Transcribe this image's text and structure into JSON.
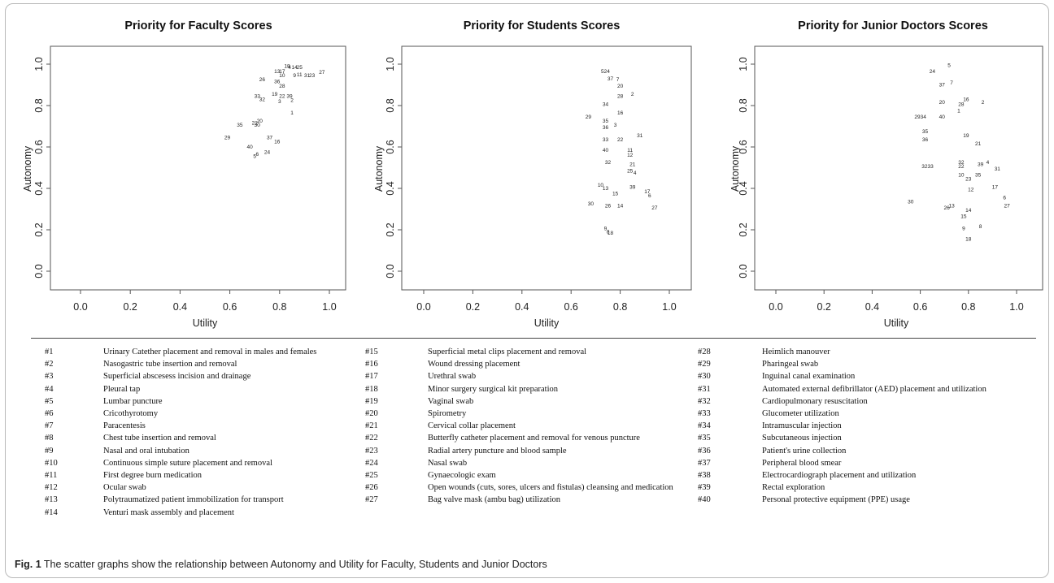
{
  "chart_data": [
    {
      "type": "scatter",
      "title": "Priority for Faculty Scores",
      "xlabel": "Utility",
      "ylabel": "Autonomy",
      "xlim": [
        0.0,
        1.0
      ],
      "ylim": [
        0.0,
        1.0
      ],
      "xticks": [
        "0.0",
        "0.2",
        "0.4",
        "0.6",
        "0.8",
        "1.0"
      ],
      "yticks": [
        "0.0",
        "0.2",
        "0.4",
        "0.6",
        "0.8",
        "1.0"
      ],
      "grid": false,
      "points": [
        {
          "label": "18",
          "x": 0.83,
          "y": 0.99
        },
        {
          "label": "4",
          "x": 0.84,
          "y": 0.985
        },
        {
          "label": "14",
          "x": 0.86,
          "y": 0.985
        },
        {
          "label": "25",
          "x": 0.88,
          "y": 0.985
        },
        {
          "label": "13",
          "x": 0.79,
          "y": 0.965
        },
        {
          "label": "17",
          "x": 0.81,
          "y": 0.965
        },
        {
          "label": "10",
          "x": 0.81,
          "y": 0.945
        },
        {
          "label": "9",
          "x": 0.86,
          "y": 0.945
        },
        {
          "label": "11",
          "x": 0.88,
          "y": 0.95
        },
        {
          "label": "31",
          "x": 0.91,
          "y": 0.945
        },
        {
          "label": "23",
          "x": 0.93,
          "y": 0.945
        },
        {
          "label": "27",
          "x": 0.97,
          "y": 0.96
        },
        {
          "label": "26",
          "x": 0.73,
          "y": 0.925
        },
        {
          "label": "36",
          "x": 0.79,
          "y": 0.915
        },
        {
          "label": "28",
          "x": 0.81,
          "y": 0.895
        },
        {
          "label": "19",
          "x": 0.78,
          "y": 0.855
        },
        {
          "label": "22",
          "x": 0.81,
          "y": 0.845
        },
        {
          "label": "39",
          "x": 0.84,
          "y": 0.845
        },
        {
          "label": "33",
          "x": 0.71,
          "y": 0.845
        },
        {
          "label": "32",
          "x": 0.73,
          "y": 0.83
        },
        {
          "label": "3",
          "x": 0.8,
          "y": 0.82
        },
        {
          "label": "2",
          "x": 0.85,
          "y": 0.825
        },
        {
          "label": "1",
          "x": 0.85,
          "y": 0.765
        },
        {
          "label": "20",
          "x": 0.72,
          "y": 0.725
        },
        {
          "label": "21",
          "x": 0.7,
          "y": 0.715
        },
        {
          "label": "35",
          "x": 0.64,
          "y": 0.705
        },
        {
          "label": "30",
          "x": 0.71,
          "y": 0.705
        },
        {
          "label": "29",
          "x": 0.59,
          "y": 0.645
        },
        {
          "label": "37",
          "x": 0.76,
          "y": 0.645
        },
        {
          "label": "16",
          "x": 0.79,
          "y": 0.625
        },
        {
          "label": "40",
          "x": 0.68,
          "y": 0.6
        },
        {
          "label": "24",
          "x": 0.75,
          "y": 0.575
        },
        {
          "label": "6",
          "x": 0.71,
          "y": 0.565
        },
        {
          "label": "5",
          "x": 0.7,
          "y": 0.555
        }
      ]
    },
    {
      "type": "scatter",
      "title": "Priority for Students Scores",
      "xlabel": "Utility",
      "ylabel": "Autonomy",
      "xlim": [
        0.0,
        1.0
      ],
      "ylim": [
        0.0,
        1.0
      ],
      "xticks": [
        "0.0",
        "0.2",
        "0.4",
        "0.6",
        "0.8",
        "1.0"
      ],
      "yticks": [
        "0.0",
        "0.2",
        "0.4",
        "0.6",
        "0.8",
        "1.0"
      ],
      "grid": false,
      "points": [
        {
          "label": "524",
          "x": 0.74,
          "y": 0.965
        },
        {
          "label": "37",
          "x": 0.76,
          "y": 0.93
        },
        {
          "label": "7",
          "x": 0.79,
          "y": 0.925
        },
        {
          "label": "20",
          "x": 0.8,
          "y": 0.895
        },
        {
          "label": "2",
          "x": 0.85,
          "y": 0.855
        },
        {
          "label": "28",
          "x": 0.8,
          "y": 0.845
        },
        {
          "label": "34",
          "x": 0.74,
          "y": 0.805
        },
        {
          "label": "16",
          "x": 0.8,
          "y": 0.765
        },
        {
          "label": "29",
          "x": 0.67,
          "y": 0.745
        },
        {
          "label": "35",
          "x": 0.74,
          "y": 0.725
        },
        {
          "label": "3",
          "x": 0.78,
          "y": 0.705
        },
        {
          "label": "36",
          "x": 0.74,
          "y": 0.695
        },
        {
          "label": "31",
          "x": 0.88,
          "y": 0.655
        },
        {
          "label": "33",
          "x": 0.74,
          "y": 0.635
        },
        {
          "label": "22",
          "x": 0.8,
          "y": 0.635
        },
        {
          "label": "11",
          "x": 0.84,
          "y": 0.585
        },
        {
          "label": "40",
          "x": 0.74,
          "y": 0.585
        },
        {
          "label": "12",
          "x": 0.84,
          "y": 0.56
        },
        {
          "label": "32",
          "x": 0.75,
          "y": 0.525
        },
        {
          "label": "21",
          "x": 0.85,
          "y": 0.515
        },
        {
          "label": "25",
          "x": 0.84,
          "y": 0.485
        },
        {
          "label": "4",
          "x": 0.86,
          "y": 0.475
        },
        {
          "label": "10",
          "x": 0.72,
          "y": 0.415
        },
        {
          "label": "13",
          "x": 0.74,
          "y": 0.4
        },
        {
          "label": "39",
          "x": 0.85,
          "y": 0.405
        },
        {
          "label": "15",
          "x": 0.78,
          "y": 0.375
        },
        {
          "label": "17",
          "x": 0.91,
          "y": 0.385
        },
        {
          "label": "6",
          "x": 0.92,
          "y": 0.365
        },
        {
          "label": "30",
          "x": 0.68,
          "y": 0.325
        },
        {
          "label": "26",
          "x": 0.75,
          "y": 0.315
        },
        {
          "label": "14",
          "x": 0.8,
          "y": 0.315
        },
        {
          "label": "27",
          "x": 0.94,
          "y": 0.305
        },
        {
          "label": "9",
          "x": 0.74,
          "y": 0.205
        },
        {
          "label": "8",
          "x": 0.75,
          "y": 0.19
        },
        {
          "label": "18",
          "x": 0.76,
          "y": 0.185
        }
      ]
    },
    {
      "type": "scatter",
      "title": "Priority for Junior Doctors Scores",
      "xlabel": "Utility",
      "ylabel": "Autonomy",
      "xlim": [
        0.0,
        1.0
      ],
      "ylim": [
        0.0,
        1.0
      ],
      "xticks": [
        "0.0",
        "0.2",
        "0.4",
        "0.6",
        "0.8",
        "1.0"
      ],
      "yticks": [
        "0.0",
        "0.2",
        "0.4",
        "0.6",
        "0.8",
        "1.0"
      ],
      "grid": false,
      "points": [
        {
          "label": "5",
          "x": 0.72,
          "y": 0.995
        },
        {
          "label": "24",
          "x": 0.65,
          "y": 0.965
        },
        {
          "label": "7",
          "x": 0.73,
          "y": 0.91
        },
        {
          "label": "37",
          "x": 0.69,
          "y": 0.9
        },
        {
          "label": "16",
          "x": 0.79,
          "y": 0.83
        },
        {
          "label": "2",
          "x": 0.86,
          "y": 0.815
        },
        {
          "label": "20",
          "x": 0.69,
          "y": 0.815
        },
        {
          "label": "28",
          "x": 0.77,
          "y": 0.805
        },
        {
          "label": "1",
          "x": 0.76,
          "y": 0.775
        },
        {
          "label": "2934",
          "x": 0.6,
          "y": 0.745
        },
        {
          "label": "40",
          "x": 0.69,
          "y": 0.745
        },
        {
          "label": "35",
          "x": 0.62,
          "y": 0.675
        },
        {
          "label": "19",
          "x": 0.79,
          "y": 0.655
        },
        {
          "label": "36",
          "x": 0.62,
          "y": 0.635
        },
        {
          "label": "21",
          "x": 0.84,
          "y": 0.615
        },
        {
          "label": "32",
          "x": 0.77,
          "y": 0.525
        },
        {
          "label": "22",
          "x": 0.77,
          "y": 0.505
        },
        {
          "label": "39",
          "x": 0.85,
          "y": 0.515
        },
        {
          "label": "4",
          "x": 0.88,
          "y": 0.525
        },
        {
          "label": "3233",
          "x": 0.63,
          "y": 0.505
        },
        {
          "label": "31",
          "x": 0.92,
          "y": 0.495
        },
        {
          "label": "10",
          "x": 0.77,
          "y": 0.465
        },
        {
          "label": "35",
          "x": 0.84,
          "y": 0.465
        },
        {
          "label": "23",
          "x": 0.8,
          "y": 0.445
        },
        {
          "label": "12",
          "x": 0.81,
          "y": 0.395
        },
        {
          "label": "17",
          "x": 0.91,
          "y": 0.405
        },
        {
          "label": "6",
          "x": 0.95,
          "y": 0.355
        },
        {
          "label": "27",
          "x": 0.96,
          "y": 0.315
        },
        {
          "label": "30",
          "x": 0.56,
          "y": 0.335
        },
        {
          "label": "13",
          "x": 0.73,
          "y": 0.315
        },
        {
          "label": "26",
          "x": 0.71,
          "y": 0.305
        },
        {
          "label": "14",
          "x": 0.8,
          "y": 0.295
        },
        {
          "label": "15",
          "x": 0.78,
          "y": 0.265
        },
        {
          "label": "9",
          "x": 0.78,
          "y": 0.205
        },
        {
          "label": "8",
          "x": 0.85,
          "y": 0.215
        },
        {
          "label": "18",
          "x": 0.8,
          "y": 0.155
        }
      ]
    }
  ],
  "legend": {
    "columns": [
      [
        {
          "num": "#1",
          "text": "Urinary Catether placement and removal in males and females"
        },
        {
          "num": "#2",
          "text": "Nasogastric tube insertion and removal"
        },
        {
          "num": "#3",
          "text": "Superficial abscesess incision and drainage"
        },
        {
          "num": "#4",
          "text": "Pleural tap"
        },
        {
          "num": "#5",
          "text": "Lumbar puncture"
        },
        {
          "num": "#6",
          "text": "Cricothyrotomy"
        },
        {
          "num": "#7",
          "text": "Paracentesis"
        },
        {
          "num": "#8",
          "text": "Chest tube insertion and removal"
        },
        {
          "num": "#9",
          "text": "Nasal and oral intubation"
        },
        {
          "num": "#10",
          "text": "Continuous simple suture placement and removal"
        },
        {
          "num": "#11",
          "text": "First degree burn medication"
        },
        {
          "num": "#12",
          "text": "Ocular swab"
        },
        {
          "num": "#13",
          "text": "Polytraumatized patient immobilization for transport"
        },
        {
          "num": "#14",
          "text": "Venturi mask assembly and placement"
        }
      ],
      [
        {
          "num": "#15",
          "text": "Superficial metal clips placement and removal"
        },
        {
          "num": "#16",
          "text": "Wound dressing placement"
        },
        {
          "num": "#17",
          "text": "Urethral swab"
        },
        {
          "num": "#18",
          "text": "Minor surgery surgical kit preparation"
        },
        {
          "num": "#19",
          "text": "Vaginal swab"
        },
        {
          "num": "#20",
          "text": "Spirometry"
        },
        {
          "num": "#21",
          "text": "Cervical collar placement"
        },
        {
          "num": "#22",
          "text": "Butterfly catheter placement and removal for venous puncture"
        },
        {
          "num": "#23",
          "text": "Radial artery puncture and blood sample"
        },
        {
          "num": "#24",
          "text": "Nasal swab"
        },
        {
          "num": "#25",
          "text": "Gynaecologic exam"
        },
        {
          "num": "#26",
          "text": "Open wounds (cuts, sores, ulcers and fistulas) cleansing and medication"
        },
        {
          "num": "#27",
          "text": "Bag valve mask (ambu bag) utilization"
        }
      ],
      [
        {
          "num": "#28",
          "text": "Heimlich manouver"
        },
        {
          "num": "#29",
          "text": "Pharingeal swab"
        },
        {
          "num": "#30",
          "text": "Inguinal canal examination"
        },
        {
          "num": "#31",
          "text": "Automated external defibrillator (AED) placement and utilization"
        },
        {
          "num": "#32",
          "text": "Cardiopulmonary resuscitation"
        },
        {
          "num": "#33",
          "text": "Glucometer utilization"
        },
        {
          "num": "#34",
          "text": "Intramuscular injection"
        },
        {
          "num": "#35",
          "text": "Subcutaneous injection"
        },
        {
          "num": "#36",
          "text": "Patient's urine collection"
        },
        {
          "num": "#37",
          "text": "Peripheral blood smear"
        },
        {
          "num": "#38",
          "text": "Electrocardiograph placement and utilization"
        },
        {
          "num": "#39",
          "text": "Rectal exploration"
        },
        {
          "num": "#40",
          "text": "Personal protective equipment (PPE) usage"
        }
      ]
    ]
  },
  "caption": {
    "label": "Fig. 1",
    "text": " The scatter graphs show the relationship between Autonomy and Utility for Faculty, Students and Junior Doctors"
  }
}
